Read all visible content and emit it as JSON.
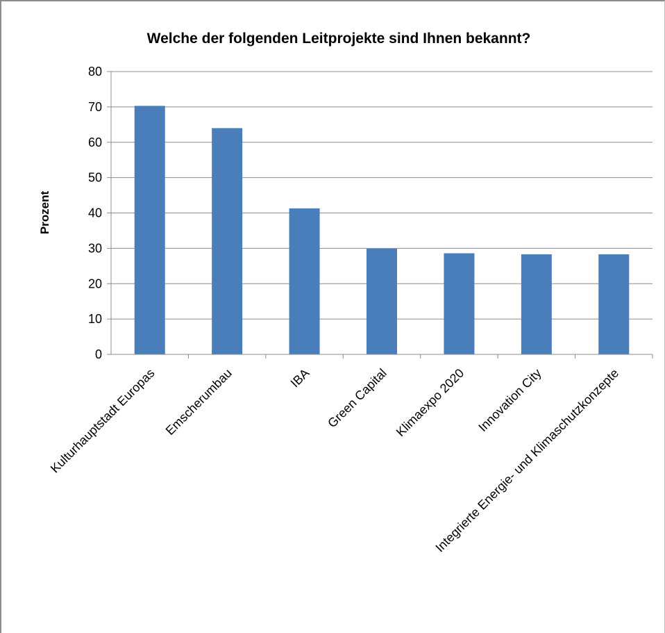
{
  "chart_data": {
    "type": "bar",
    "title": "Welche der folgenden Leitprojekte sind Ihnen bekannt?",
    "xlabel": "",
    "ylabel": "Prozent",
    "ylim": [
      0,
      80
    ],
    "yticks": [
      0,
      10,
      20,
      30,
      40,
      50,
      60,
      70,
      80
    ],
    "grid": true,
    "categories": [
      "Kulturhauptstadt Europas",
      "Emscherumbau",
      "IBA",
      "Green Capital",
      "Klimaexpo 2020",
      "Innovation City",
      "Integrierte Energie- und Klimaschutzkonzepte"
    ],
    "values": [
      70.3,
      64.0,
      41.3,
      29.9,
      28.6,
      28.3,
      28.3
    ],
    "bar_color": "#4a7ebb"
  }
}
